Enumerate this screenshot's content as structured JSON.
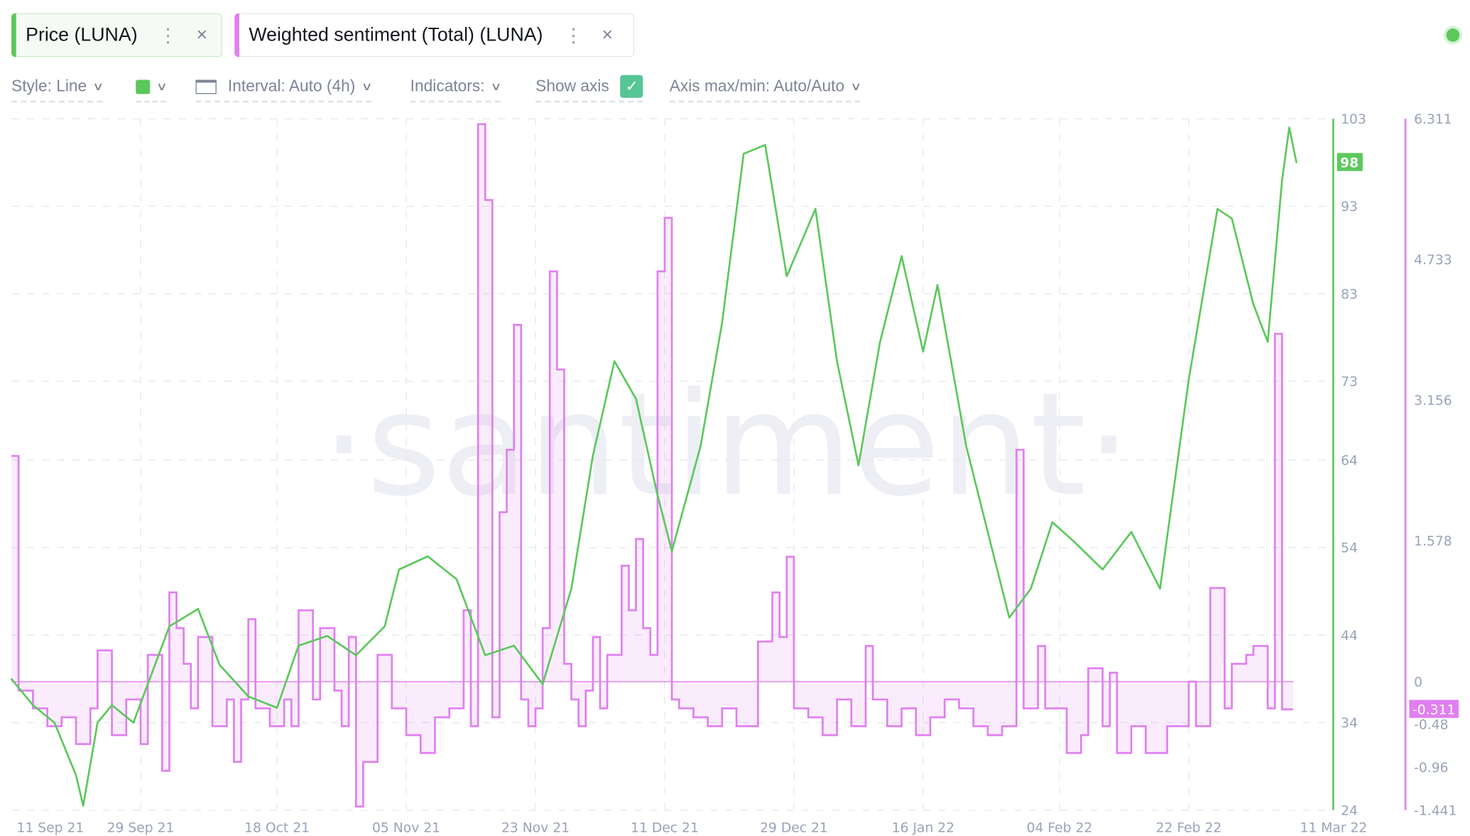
{
  "tabs": [
    {
      "label": "Price (LUNA)",
      "color": "#5cc85c"
    },
    {
      "label": "Weighted sentiment (Total) (LUNA)",
      "color": "#e07ff0"
    }
  ],
  "toolbar": {
    "style": "Style: Line",
    "color_swatch": "#5cc85c",
    "interval": "Interval: Auto (4h)",
    "indicators": "Indicators:",
    "show_axis": "Show axis",
    "show_axis_checked": true,
    "axis_maxmin": "Axis max/min: Auto/Auto"
  },
  "status_dot_color": "#5cc85c",
  "watermark": "·santiment·",
  "chart_data": {
    "type": "line",
    "x_ticks": [
      [
        "2021-09-11",
        "11 Sep 21"
      ],
      [
        "2021-09-29",
        "29 Sep 21"
      ],
      [
        "2021-10-18",
        "18 Oct 21"
      ],
      [
        "2021-11-05",
        "05 Nov 21"
      ],
      [
        "2021-11-23",
        "23 Nov 21"
      ],
      [
        "2021-12-11",
        "11 Dec 21"
      ],
      [
        "2021-12-29",
        "29 Dec 21"
      ],
      [
        "2022-01-16",
        "16 Jan 22"
      ],
      [
        "2022-02-04",
        "04 Feb 22"
      ],
      [
        "2022-02-22",
        "22 Feb 22"
      ],
      [
        "2022-03-11",
        "11 Mar 22"
      ]
    ],
    "grid": true,
    "series": [
      {
        "name": "Price (LUNA)",
        "color": "#5cc85c",
        "style": "line",
        "axis": "right-1",
        "ylim": [
          24,
          103
        ],
        "y_ticks": [
          "103",
          "93",
          "83",
          "73",
          "64",
          "54",
          "44",
          "34",
          "24"
        ],
        "last_value_label": "98",
        "points": [
          [
            "2021-09-11",
            39
          ],
          [
            "2021-09-14",
            36
          ],
          [
            "2021-09-17",
            34
          ],
          [
            "2021-09-20",
            28
          ],
          [
            "2021-09-21",
            24.5
          ],
          [
            "2021-09-23",
            34
          ],
          [
            "2021-09-25",
            36
          ],
          [
            "2021-09-28",
            34
          ],
          [
            "2021-09-30",
            38.4
          ],
          [
            "2021-10-03",
            45
          ],
          [
            "2021-10-07",
            47
          ],
          [
            "2021-10-10",
            40.6
          ],
          [
            "2021-10-14",
            37
          ],
          [
            "2021-10-18",
            35.7
          ],
          [
            "2021-10-21",
            42.8
          ],
          [
            "2021-10-25",
            43.9
          ],
          [
            "2021-10-29",
            41.7
          ],
          [
            "2021-11-02",
            45
          ],
          [
            "2021-11-04",
            51.5
          ],
          [
            "2021-11-08",
            53
          ],
          [
            "2021-11-12",
            50.4
          ],
          [
            "2021-11-16",
            41.7
          ],
          [
            "2021-11-20",
            42.8
          ],
          [
            "2021-11-24",
            38.4
          ],
          [
            "2021-11-28",
            49.3
          ],
          [
            "2021-12-01",
            64.5
          ],
          [
            "2021-12-04",
            75.3
          ],
          [
            "2021-12-07",
            71
          ],
          [
            "2021-12-10",
            60
          ],
          [
            "2021-12-12",
            53.6
          ],
          [
            "2021-12-16",
            65.6
          ],
          [
            "2021-12-19",
            79.7
          ],
          [
            "2021-12-22",
            99
          ],
          [
            "2021-12-25",
            100
          ],
          [
            "2021-12-28",
            85
          ],
          [
            "2022-01-01",
            92.7
          ],
          [
            "2022-01-04",
            75.3
          ],
          [
            "2022-01-07",
            63.4
          ],
          [
            "2022-01-10",
            77.5
          ],
          [
            "2022-01-13",
            87.3
          ],
          [
            "2022-01-16",
            76.4
          ],
          [
            "2022-01-18",
            84
          ],
          [
            "2022-01-22",
            65.6
          ],
          [
            "2022-01-25",
            55.8
          ],
          [
            "2022-01-28",
            46
          ],
          [
            "2022-01-31",
            49.3
          ],
          [
            "2022-02-03",
            56.9
          ],
          [
            "2022-02-06",
            54.7
          ],
          [
            "2022-02-10",
            51.5
          ],
          [
            "2022-02-14",
            55.8
          ],
          [
            "2022-02-18",
            49.3
          ],
          [
            "2022-02-22",
            73.2
          ],
          [
            "2022-02-26",
            92.7
          ],
          [
            "2022-02-28",
            91.6
          ],
          [
            "2022-03-03",
            81.8
          ],
          [
            "2022-03-05",
            77.5
          ],
          [
            "2022-03-07",
            96
          ],
          [
            "2022-03-08",
            102
          ],
          [
            "2022-03-09",
            98
          ]
        ]
      },
      {
        "name": "Weighted sentiment (Total) (LUNA)",
        "color": "#e07ff0",
        "style": "step-area",
        "axis": "right-2",
        "ylim": [
          -1.441,
          6.311
        ],
        "y_ticks": [
          [
            "6.311",
            6.311
          ],
          [
            "4.733",
            4.733
          ],
          [
            "3.156",
            3.156
          ],
          [
            "1.578",
            1.578
          ],
          [
            "0",
            0
          ],
          [
            "-0.48",
            -0.48
          ],
          [
            "-0.96",
            -0.96
          ],
          [
            "-1.441",
            -1.441
          ]
        ],
        "last_value_label": "-0.311",
        "points": [
          [
            "2021-09-11",
            2.53
          ],
          [
            "2021-09-12",
            -0.1
          ],
          [
            "2021-09-14",
            -0.3
          ],
          [
            "2021-09-16",
            -0.5
          ],
          [
            "2021-09-18",
            -0.4
          ],
          [
            "2021-09-20",
            -0.7
          ],
          [
            "2021-09-22",
            -0.3
          ],
          [
            "2021-09-23",
            0.35
          ],
          [
            "2021-09-25",
            -0.6
          ],
          [
            "2021-09-27",
            -0.2
          ],
          [
            "2021-09-29",
            -0.7
          ],
          [
            "2021-09-30",
            0.3
          ],
          [
            "2021-10-02",
            -1.0
          ],
          [
            "2021-10-03",
            1.0
          ],
          [
            "2021-10-04",
            0.6
          ],
          [
            "2021-10-05",
            0.2
          ],
          [
            "2021-10-06",
            -0.3
          ],
          [
            "2021-10-07",
            0.5
          ],
          [
            "2021-10-09",
            -0.5
          ],
          [
            "2021-10-11",
            -0.2
          ],
          [
            "2021-10-12",
            -0.9
          ],
          [
            "2021-10-13",
            -0.2
          ],
          [
            "2021-10-14",
            0.7
          ],
          [
            "2021-10-15",
            -0.3
          ],
          [
            "2021-10-17",
            -0.5
          ],
          [
            "2021-10-19",
            -0.2
          ],
          [
            "2021-10-20",
            -0.5
          ],
          [
            "2021-10-21",
            0.8
          ],
          [
            "2021-10-23",
            -0.2
          ],
          [
            "2021-10-24",
            0.6
          ],
          [
            "2021-10-26",
            -0.1
          ],
          [
            "2021-10-27",
            -0.5
          ],
          [
            "2021-10-28",
            0.5
          ],
          [
            "2021-10-29",
            -1.4
          ],
          [
            "2021-10-30",
            -0.9
          ],
          [
            "2021-11-01",
            0.3
          ],
          [
            "2021-11-03",
            -0.3
          ],
          [
            "2021-11-05",
            -0.6
          ],
          [
            "2021-11-07",
            -0.8
          ],
          [
            "2021-11-09",
            -0.4
          ],
          [
            "2021-11-11",
            -0.3
          ],
          [
            "2021-11-13",
            0.8
          ],
          [
            "2021-11-14",
            -0.5
          ],
          [
            "2021-11-15",
            6.25
          ],
          [
            "2021-11-16",
            5.4
          ],
          [
            "2021-11-17",
            -0.4
          ],
          [
            "2021-11-18",
            1.9
          ],
          [
            "2021-11-19",
            2.6
          ],
          [
            "2021-11-20",
            4.0
          ],
          [
            "2021-11-21",
            -0.2
          ],
          [
            "2021-11-22",
            -0.5
          ],
          [
            "2021-11-23",
            -0.3
          ],
          [
            "2021-11-24",
            0.6
          ],
          [
            "2021-11-25",
            4.6
          ],
          [
            "2021-11-26",
            3.5
          ],
          [
            "2021-11-27",
            0.2
          ],
          [
            "2021-11-28",
            -0.2
          ],
          [
            "2021-11-29",
            -0.5
          ],
          [
            "2021-11-30",
            -0.1
          ],
          [
            "2021-12-01",
            0.5
          ],
          [
            "2021-12-02",
            -0.3
          ],
          [
            "2021-12-03",
            0.3
          ],
          [
            "2021-12-05",
            1.3
          ],
          [
            "2021-12-06",
            0.8
          ],
          [
            "2021-12-07",
            1.6
          ],
          [
            "2021-12-08",
            0.6
          ],
          [
            "2021-12-09",
            0.3
          ],
          [
            "2021-12-10",
            4.6
          ],
          [
            "2021-12-11",
            5.2
          ],
          [
            "2021-12-12",
            -0.2
          ],
          [
            "2021-12-13",
            -0.3
          ],
          [
            "2021-12-15",
            -0.4
          ],
          [
            "2021-12-17",
            -0.5
          ],
          [
            "2021-12-19",
            -0.3
          ],
          [
            "2021-12-21",
            -0.5
          ],
          [
            "2021-12-24",
            0.45
          ],
          [
            "2021-12-26",
            1.0
          ],
          [
            "2021-12-27",
            0.5
          ],
          [
            "2021-12-28",
            1.4
          ],
          [
            "2021-12-29",
            -0.3
          ],
          [
            "2021-12-31",
            -0.4
          ],
          [
            "2022-01-02",
            -0.6
          ],
          [
            "2022-01-04",
            -0.2
          ],
          [
            "2022-01-06",
            -0.5
          ],
          [
            "2022-01-08",
            0.4
          ],
          [
            "2022-01-09",
            -0.2
          ],
          [
            "2022-01-11",
            -0.5
          ],
          [
            "2022-01-13",
            -0.3
          ],
          [
            "2022-01-15",
            -0.6
          ],
          [
            "2022-01-17",
            -0.4
          ],
          [
            "2022-01-19",
            -0.2
          ],
          [
            "2022-01-21",
            -0.3
          ],
          [
            "2022-01-23",
            -0.5
          ],
          [
            "2022-01-25",
            -0.6
          ],
          [
            "2022-01-27",
            -0.5
          ],
          [
            "2022-01-29",
            2.6
          ],
          [
            "2022-01-30",
            -0.3
          ],
          [
            "2022-02-01",
            0.4
          ],
          [
            "2022-02-02",
            -0.3
          ],
          [
            "2022-02-05",
            -0.8
          ],
          [
            "2022-02-07",
            -0.6
          ],
          [
            "2022-02-08",
            0.15
          ],
          [
            "2022-02-10",
            -0.5
          ],
          [
            "2022-02-11",
            0.1
          ],
          [
            "2022-02-12",
            -0.8
          ],
          [
            "2022-02-14",
            -0.5
          ],
          [
            "2022-02-16",
            -0.8
          ],
          [
            "2022-02-19",
            -0.5
          ],
          [
            "2022-02-22",
            0.0
          ],
          [
            "2022-02-23",
            -0.5
          ],
          [
            "2022-02-25",
            1.05
          ],
          [
            "2022-02-27",
            -0.3
          ],
          [
            "2022-02-28",
            0.2
          ],
          [
            "2022-03-02",
            0.3
          ],
          [
            "2022-03-03",
            0.4
          ],
          [
            "2022-03-05",
            -0.3
          ],
          [
            "2022-03-06",
            3.9
          ],
          [
            "2022-03-07",
            -0.311
          ],
          [
            "2022-03-08",
            -0.311
          ]
        ]
      }
    ]
  }
}
